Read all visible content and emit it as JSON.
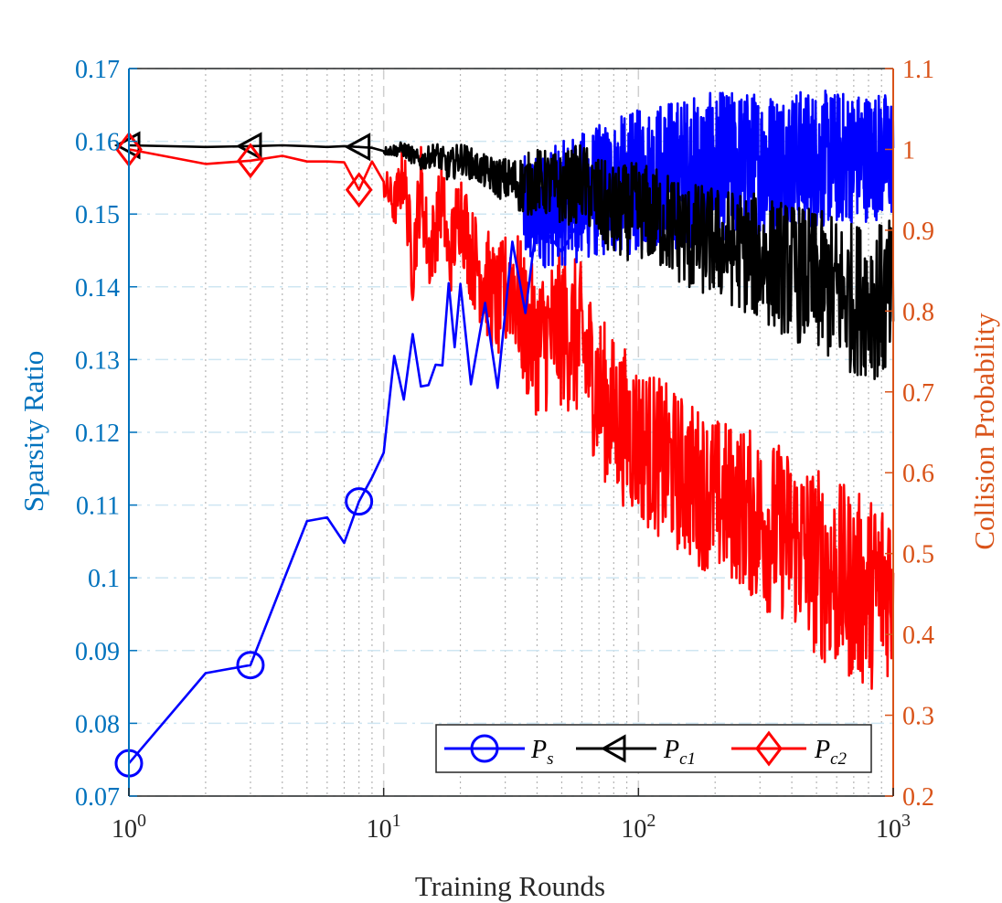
{
  "chart_data": {
    "type": "line",
    "xscale": "log",
    "xlim": [
      1,
      1000
    ],
    "xlabel": "Training Rounds",
    "ylabel_left": "Sparsity Ratio",
    "ylabel_right": "Collision Probability",
    "ylim_left": [
      0.07,
      0.17
    ],
    "ylim_right": [
      0.2,
      1.1
    ],
    "x_ticks": [
      {
        "base": "10",
        "exp": "0",
        "value": 1
      },
      {
        "base": "10",
        "exp": "1",
        "value": 10
      },
      {
        "base": "10",
        "exp": "2",
        "value": 100
      },
      {
        "base": "10",
        "exp": "3",
        "value": 1000
      }
    ],
    "y_ticks_left": [
      "0.07",
      "0.08",
      "0.09",
      "0.1",
      "0.11",
      "0.12",
      "0.13",
      "0.14",
      "0.15",
      "0.16",
      "0.17"
    ],
    "y_ticks_right": [
      "0.2",
      "0.3",
      "0.4",
      "0.5",
      "0.6",
      "0.7",
      "0.8",
      "0.9",
      "1",
      "1.1"
    ],
    "grid": true,
    "legend_position": "bottom-right",
    "series": [
      {
        "name": "P_s",
        "label_main": "P",
        "label_sub": "s",
        "axis": "left",
        "color": "#0000FF",
        "marker": "circle",
        "x": [
          1,
          2,
          3,
          4,
          5,
          6,
          7,
          8,
          9,
          10,
          11,
          12,
          13,
          14,
          15,
          16,
          17,
          18,
          19,
          20,
          22,
          25,
          28,
          32,
          36,
          40,
          50,
          60,
          70,
          80,
          100,
          130,
          160,
          200,
          250,
          300,
          400,
          500,
          600,
          700,
          800,
          900,
          1000
        ],
        "values": [
          0.0745,
          0.0869,
          0.088,
          0.0992,
          0.1078,
          0.1083,
          0.1048,
          0.1105,
          0.1138,
          0.1172,
          0.1305,
          0.1245,
          0.1335,
          0.1263,
          0.1265,
          0.1293,
          0.1292,
          0.1405,
          0.1317,
          0.1404,
          0.1266,
          0.1378,
          0.1261,
          0.1462,
          0.1364,
          0.1492,
          0.1448,
          0.1497,
          0.1528,
          0.149,
          0.1538,
          0.1545,
          0.1553,
          0.1563,
          0.157,
          0.1578,
          0.1585,
          0.1592,
          0.1598,
          0.1602,
          0.1605,
          0.1608,
          0.161
        ],
        "band_left": [
          0.1425,
          0.143,
          0.144,
          0.1445,
          0.145,
          0.1455,
          0.1465,
          0.147,
          0.1478,
          0.1482,
          0.1488,
          0.1495
        ],
        "band_right": [
          0.158,
          0.1605,
          0.1625,
          0.1642,
          0.1658,
          0.1665,
          0.167,
          0.167,
          0.1672,
          0.167,
          0.167,
          0.1668
        ]
      },
      {
        "name": "P_c1",
        "label_main": "P",
        "label_sub": "c1",
        "axis": "right",
        "color": "#000000",
        "marker": "triangle-left",
        "x": [
          1,
          2,
          3,
          4,
          5,
          6,
          7,
          8,
          9,
          10,
          12,
          14,
          16,
          18,
          20,
          24,
          28,
          32,
          36,
          40,
          50,
          60,
          70,
          80,
          100,
          130,
          160,
          200,
          250,
          300,
          400,
          500,
          600,
          700,
          800,
          900,
          1000
        ],
        "values": [
          1.005,
          1.003,
          1.004,
          1.005,
          1.004,
          1.003,
          1.004,
          1.003,
          1.002,
          0.998,
          1.0,
          0.985,
          0.995,
          0.978,
          0.99,
          0.975,
          0.965,
          0.96,
          0.955,
          0.962,
          0.95,
          0.96,
          0.935,
          0.92,
          0.925,
          0.91,
          0.89,
          0.885,
          0.875,
          0.865,
          0.85,
          0.835,
          0.825,
          0.815,
          0.82,
          0.81,
          0.815
        ],
        "spread": [
          0,
          0,
          0,
          0,
          0,
          0,
          0,
          0,
          0.004,
          0.005,
          0.01,
          0.012,
          0.015,
          0.02,
          0.02,
          0.02,
          0.025,
          0.03,
          0.04,
          0.04,
          0.045,
          0.05,
          0.055,
          0.06,
          0.06,
          0.065,
          0.07,
          0.07,
          0.075,
          0.08,
          0.085,
          0.09,
          0.095,
          0.095,
          0.1,
          0.1,
          0.1
        ]
      },
      {
        "name": "P_c2",
        "label_main": "P",
        "label_sub": "c2",
        "axis": "right",
        "color": "#FF0000",
        "marker": "diamond",
        "x": [
          1,
          2,
          3,
          4,
          5,
          6,
          7,
          8,
          9,
          10,
          11,
          12,
          13,
          14,
          15,
          16,
          17,
          18,
          20,
          22,
          25,
          28,
          32,
          36,
          40,
          50,
          60,
          70,
          80,
          100,
          130,
          160,
          200,
          250,
          300,
          400,
          500,
          600,
          700,
          800,
          900,
          1000
        ],
        "values": [
          1.0,
          0.982,
          0.986,
          0.992,
          0.985,
          0.985,
          0.984,
          0.95,
          0.985,
          0.96,
          0.93,
          0.97,
          0.855,
          0.96,
          0.87,
          0.9,
          0.945,
          0.86,
          0.93,
          0.87,
          0.84,
          0.805,
          0.84,
          0.78,
          0.76,
          0.78,
          0.76,
          0.7,
          0.67,
          0.64,
          0.61,
          0.59,
          0.57,
          0.56,
          0.54,
          0.52,
          0.49,
          0.47,
          0.46,
          0.45,
          0.46,
          0.47
        ],
        "spread": [
          0,
          0,
          0,
          0,
          0,
          0,
          0,
          0,
          0.01,
          0.02,
          0.03,
          0.04,
          0.05,
          0.05,
          0.05,
          0.05,
          0.05,
          0.05,
          0.06,
          0.06,
          0.07,
          0.07,
          0.08,
          0.09,
          0.09,
          0.1,
          0.1,
          0.1,
          0.1,
          0.1,
          0.1,
          0.1,
          0.1,
          0.1,
          0.11,
          0.11,
          0.12,
          0.12,
          0.12,
          0.12,
          0.12,
          0.12
        ]
      }
    ],
    "markers": {
      "P_s": [
        1,
        3,
        8
      ],
      "P_c1": [
        1,
        3,
        8
      ],
      "P_c2": [
        1,
        3,
        8
      ]
    }
  }
}
